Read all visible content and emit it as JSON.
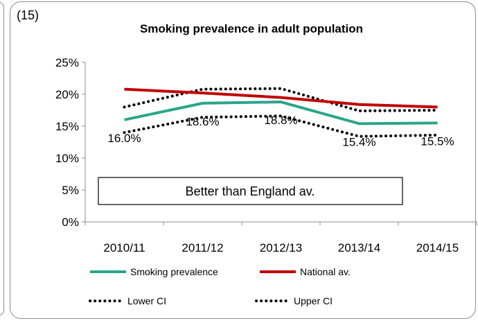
{
  "panel_number": "(15)",
  "annotation": "Better than England av.",
  "chart_data": {
    "type": "line",
    "title": "Smoking prevalence in adult population",
    "xlabel": "",
    "ylabel": "",
    "categories": [
      "2010/11",
      "2011/12",
      "2012/13",
      "2013/14",
      "2014/15"
    ],
    "ylim": [
      0,
      25
    ],
    "yticks": [
      0,
      5,
      10,
      15,
      20,
      25
    ],
    "ytick_labels": [
      "0%",
      "5%",
      "10%",
      "15%",
      "20%",
      "25%"
    ],
    "grid": false,
    "legend_position": "bottom",
    "series": [
      {
        "name": "Smoking prevalence",
        "values": [
          16.0,
          18.6,
          18.8,
          15.4,
          15.5
        ],
        "color": "#2aa58a",
        "style": "solid",
        "labels": [
          "16.0%",
          "18.6%",
          "18.8%",
          "15.4%",
          "15.5%"
        ]
      },
      {
        "name": "National av.",
        "values": [
          20.8,
          20.2,
          19.5,
          18.4,
          18.0
        ],
        "color": "#c00000",
        "style": "solid"
      },
      {
        "name": "Lower CI",
        "values": [
          14.0,
          16.4,
          16.6,
          13.4,
          13.6
        ],
        "color": "#000000",
        "style": "dotted"
      },
      {
        "name": "Upper CI",
        "values": [
          18.0,
          20.8,
          20.9,
          17.4,
          17.5
        ],
        "color": "#000000",
        "style": "dotted"
      }
    ]
  }
}
